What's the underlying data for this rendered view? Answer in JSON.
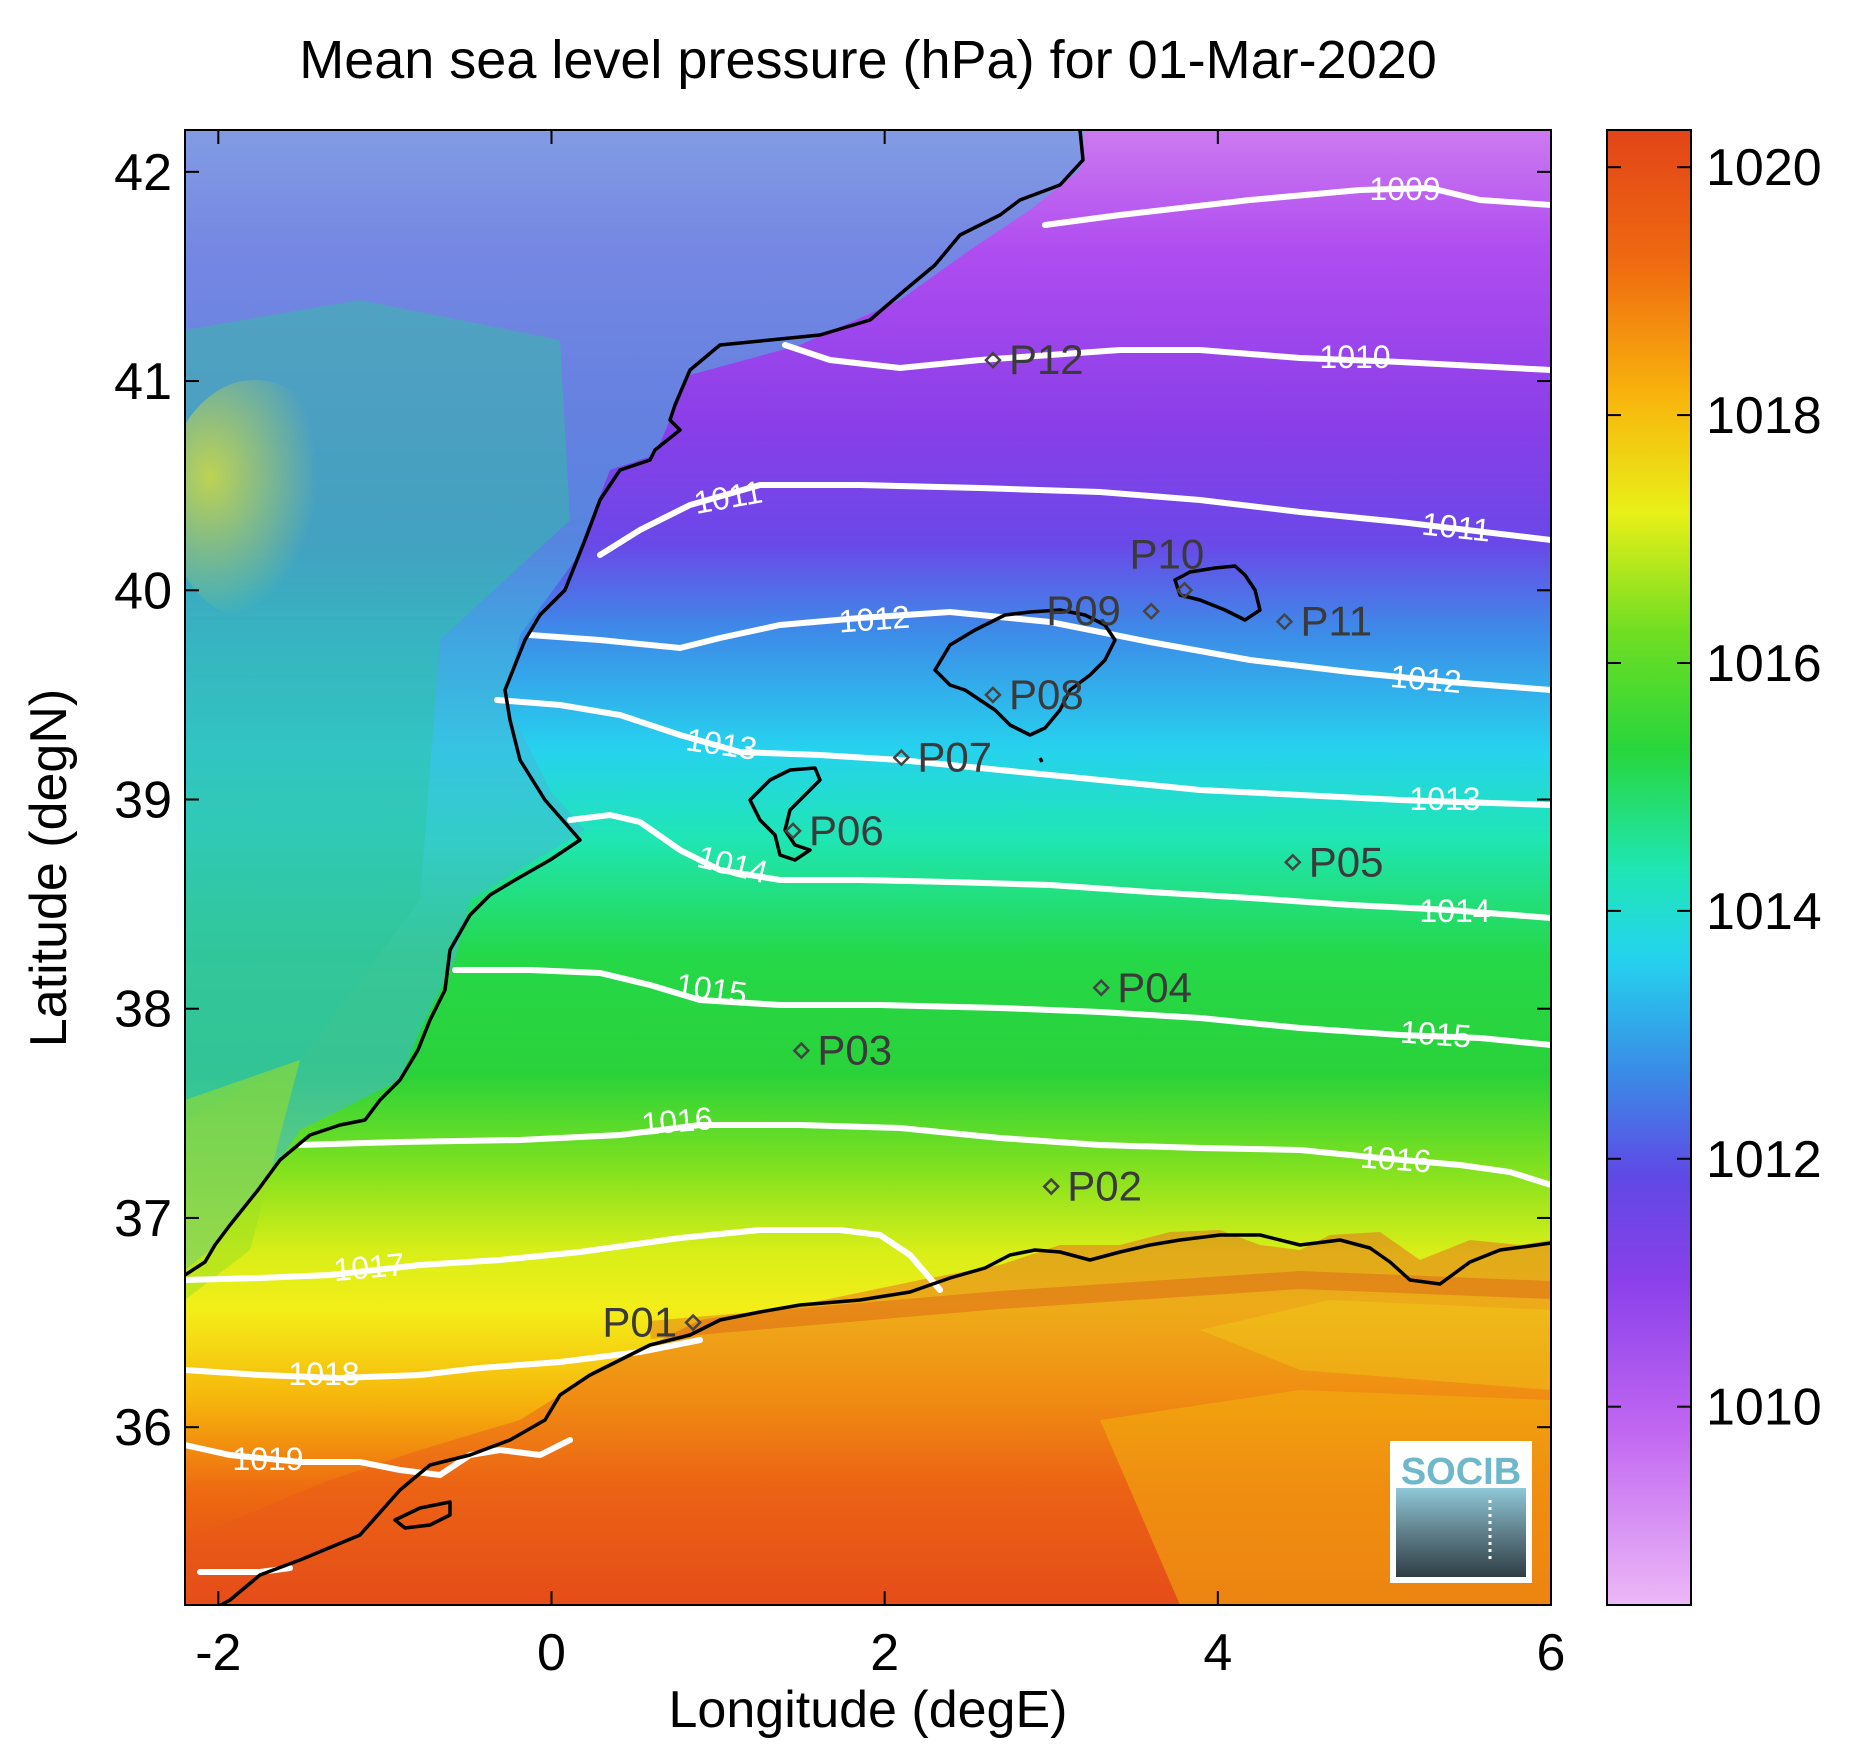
{
  "title": "Mean sea level pressure (hPa) for 01-Mar-2020",
  "axes": {
    "xlabel": "Longitude (degE)",
    "ylabel": "Latitude (degN)",
    "xlim": [
      -2.2,
      6.0
    ],
    "ylim": [
      35.15,
      42.2
    ],
    "xticks": [
      "-2",
      "0",
      "2",
      "4",
      "6"
    ],
    "xtick_values": [
      -2,
      0,
      2,
      4,
      6
    ],
    "yticks": [
      "36",
      "37",
      "38",
      "39",
      "40",
      "41",
      "42"
    ],
    "ytick_values": [
      36,
      37,
      38,
      39,
      40,
      41,
      42
    ]
  },
  "colorbar": {
    "range": [
      1008.4,
      1020.3
    ],
    "ticks": [
      "1010",
      "1012",
      "1014",
      "1016",
      "1018",
      "1020"
    ],
    "tick_values": [
      1010,
      1012,
      1014,
      1016,
      1018,
      1020
    ],
    "colors": [
      "#e7a8f5",
      "#b54df0",
      "#7a3de8",
      "#3a8ae6",
      "#22d6ec",
      "#1fe8b0",
      "#2ad23a",
      "#8fe21c",
      "#f3f018",
      "#f8a808",
      "#ee6410",
      "#e24418"
    ]
  },
  "contour_labels": [
    "1009",
    "1010",
    "1011",
    "1012",
    "1013",
    "1014",
    "1015",
    "1016",
    "1017",
    "1018",
    "1019"
  ],
  "points": [
    {
      "label": "P01",
      "lon": 0.85,
      "lat": 36.5
    },
    {
      "label": "P02",
      "lon": 3.0,
      "lat": 37.15
    },
    {
      "label": "P03",
      "lon": 1.5,
      "lat": 37.8
    },
    {
      "label": "P04",
      "lon": 3.3,
      "lat": 38.1
    },
    {
      "label": "P05",
      "lon": 4.45,
      "lat": 38.7
    },
    {
      "label": "P06",
      "lon": 1.45,
      "lat": 38.85
    },
    {
      "label": "P07",
      "lon": 2.1,
      "lat": 39.2
    },
    {
      "label": "P08",
      "lon": 2.65,
      "lat": 39.5
    },
    {
      "label": "P09",
      "lon": 3.6,
      "lat": 39.9
    },
    {
      "label": "P10",
      "lon": 3.8,
      "lat": 40.0
    },
    {
      "label": "P11",
      "lon": 4.4,
      "lat": 39.85
    },
    {
      "label": "P12",
      "lon": 2.65,
      "lat": 41.1
    }
  ],
  "logo": {
    "text": "SOCIB"
  }
}
